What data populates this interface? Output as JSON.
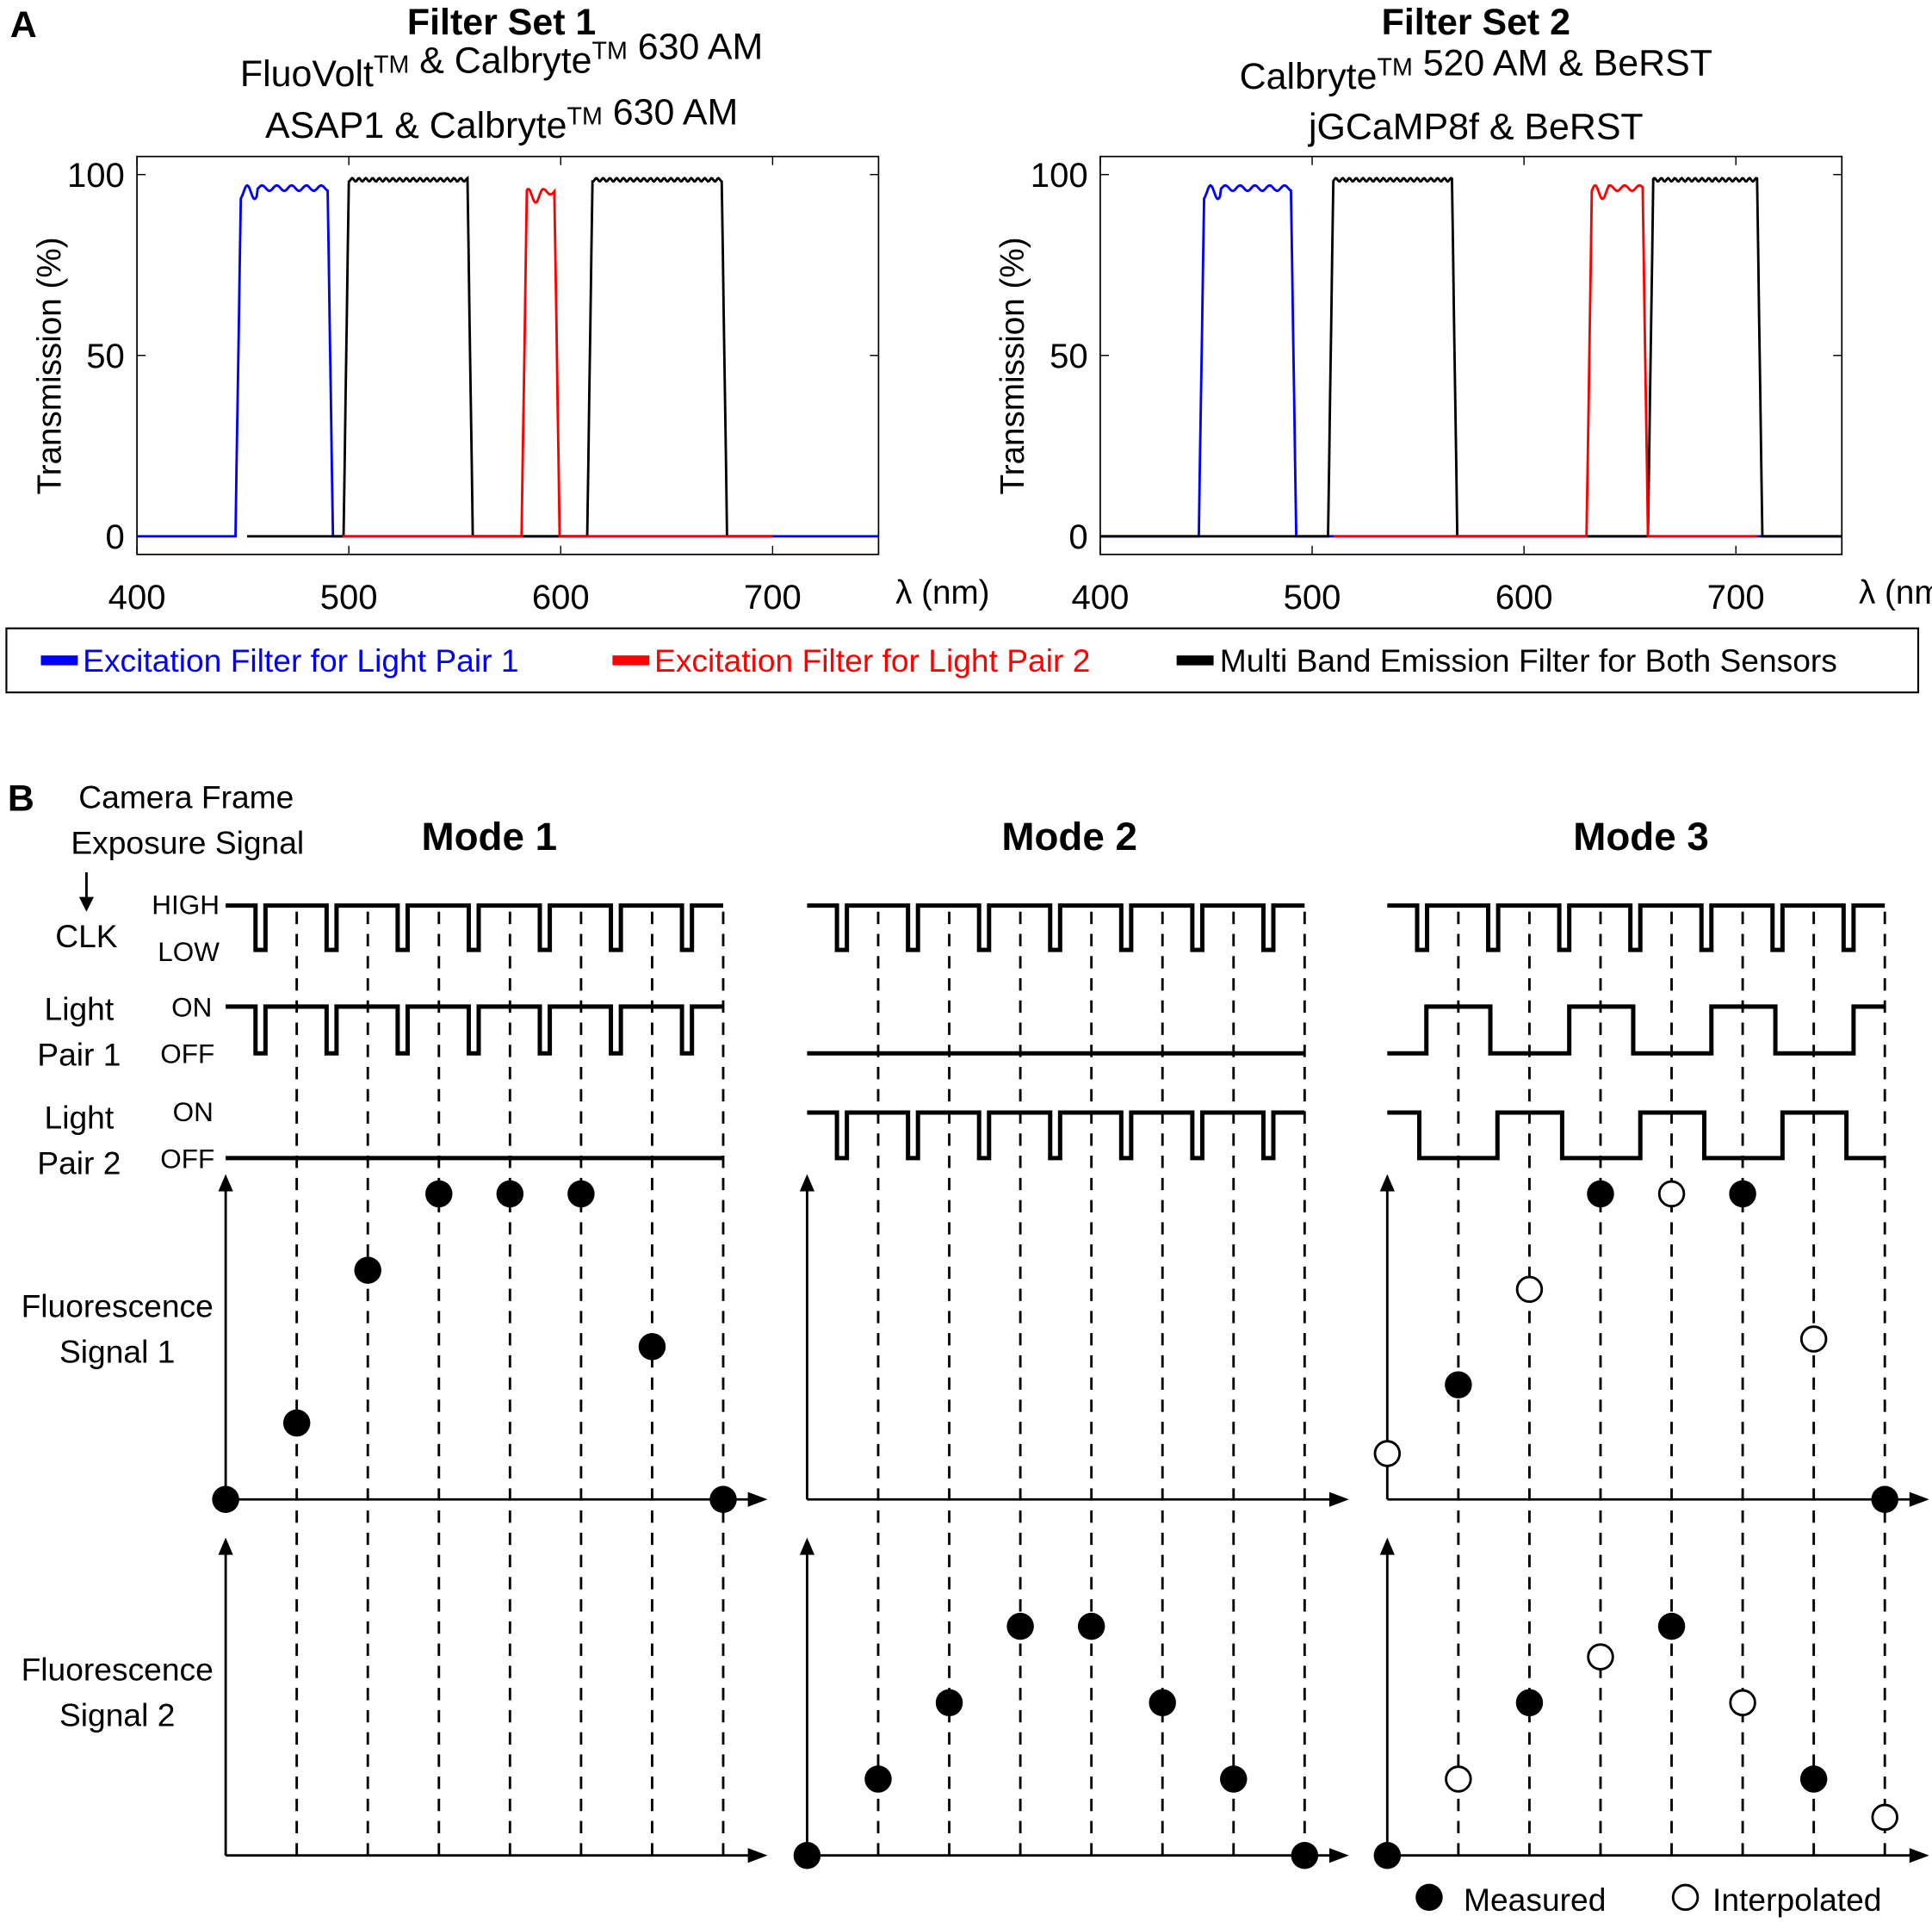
{
  "panel_a": {
    "label": "A",
    "legend": [
      {
        "label": "Excitation Filter for Light Pair 1",
        "color": "#0000ff"
      },
      {
        "label": "Excitation Filter for Light Pair 2",
        "color": "#ff0000"
      },
      {
        "label": "Multi Band Emission Filter for Both Sensors",
        "color": "#000000"
      }
    ]
  },
  "chart_data": [
    {
      "type": "line",
      "title": "Filter Set 1",
      "subtitle": [
        "FluoVolt™ & Calbryte™ 630 AM",
        "ASAP1 & Calbryte™ 630 AM"
      ],
      "xlabel": "λ (nm)",
      "ylabel": "Transmission (%)",
      "xlim": [
        400,
        750
      ],
      "ylim": [
        -5,
        105
      ],
      "xticks": [
        400,
        500,
        600,
        700
      ],
      "yticks": [
        0,
        50,
        100
      ],
      "grid": false,
      "series": [
        {
          "color": "#0000ff",
          "range": [
            400,
            750
          ],
          "bands": [
            {
              "start": 449,
              "end": 490,
              "peak": 97
            }
          ]
        },
        {
          "color": "#000000",
          "range": [
            452,
            700
          ],
          "bands": [
            {
              "start": 500,
              "end": 556,
              "peak": 99
            },
            {
              "start": 615,
              "end": 676,
              "peak": 99
            }
          ]
        },
        {
          "color": "#ff0000",
          "range": [
            497,
            700
          ],
          "bands": [
            {
              "start": 584,
              "end": 597,
              "peak": 96
            }
          ]
        }
      ]
    },
    {
      "type": "line",
      "title": "Filter Set 2",
      "subtitle": [
        "Calbryte™ 520 AM & BeRST",
        "jGCaMP8f & BeRST"
      ],
      "xlabel": "λ (nm)",
      "ylabel": "Transmission (%)",
      "xlim": [
        400,
        750
      ],
      "ylim": [
        -5,
        105
      ],
      "xticks": [
        400,
        500,
        600,
        700
      ],
      "yticks": [
        0,
        50,
        100
      ],
      "grid": false,
      "series": [
        {
          "color": "#0000ff",
          "range": [
            400,
            750
          ],
          "bands": [
            {
              "start": 449,
              "end": 490,
              "peak": 97
            }
          ]
        },
        {
          "color": "#000000",
          "range": [
            400,
            750
          ],
          "bands": [
            {
              "start": 510,
              "end": 566,
              "peak": 99
            },
            {
              "start": 661,
              "end": 710,
              "peak": 99
            }
          ]
        },
        {
          "color": "#ff0000",
          "range": [
            510,
            710
          ],
          "bands": [
            {
              "start": 632,
              "end": 656,
              "peak": 97
            }
          ]
        }
      ]
    }
  ],
  "panel_b": {
    "label": "B",
    "camera_label": [
      "Camera Frame",
      "Exposure Signal"
    ],
    "clk_label": "CLK",
    "high": "HIGH",
    "low": "LOW",
    "light1_label": [
      "Light",
      "Pair 1"
    ],
    "light2_label": [
      "Light",
      "Pair 2"
    ],
    "on": "ON",
    "off": "OFF",
    "signal1_label": [
      "Fluorescence",
      "Signal 1"
    ],
    "signal2_label": [
      "Fluorescence",
      "Signal 2"
    ],
    "legend": {
      "measured": "Measured",
      "interpolated": "Interpolated"
    },
    "frames": 7,
    "modes": [
      {
        "title": "Mode 1",
        "light_pair_1": {
          "pattern": "pulsed"
        },
        "light_pair_2": {
          "pattern": "off"
        },
        "signal_1": {
          "measured": [
            [
              0,
              0
            ],
            [
              1,
              1
            ],
            [
              2,
              3
            ],
            [
              3,
              4
            ],
            [
              4,
              4
            ],
            [
              5,
              4
            ],
            [
              6,
              2
            ],
            [
              7,
              0
            ]
          ],
          "interpolated": []
        },
        "signal_2": {
          "measured": [],
          "interpolated": []
        }
      },
      {
        "title": "Mode 2",
        "light_pair_1": {
          "pattern": "off"
        },
        "light_pair_2": {
          "pattern": "pulsed"
        },
        "signal_1": {
          "measured": [],
          "interpolated": []
        },
        "signal_2": {
          "measured": [
            [
              0,
              0
            ],
            [
              1,
              1
            ],
            [
              2,
              2
            ],
            [
              3,
              3
            ],
            [
              4,
              3
            ],
            [
              5,
              2
            ],
            [
              6,
              1
            ],
            [
              7,
              0
            ]
          ],
          "interpolated": []
        }
      },
      {
        "title": "Mode 3",
        "light_pair_1": {
          "pattern": "alternating",
          "on_frames": [
            1,
            3,
            5,
            7
          ]
        },
        "light_pair_2": {
          "pattern": "alternating",
          "on_frames": [
            0,
            2,
            4,
            6
          ]
        },
        "signal_1": {
          "measured": [
            [
              1,
              1.5
            ],
            [
              3,
              4
            ],
            [
              5,
              4
            ],
            [
              7,
              0
            ]
          ],
          "interpolated": [
            [
              0,
              0.6
            ],
            [
              2,
              2.75
            ],
            [
              4,
              4
            ],
            [
              6,
              2.1
            ]
          ]
        },
        "signal_2": {
          "measured": [
            [
              0,
              0
            ],
            [
              2,
              2
            ],
            [
              4,
              3
            ],
            [
              6,
              1
            ]
          ],
          "interpolated": [
            [
              1,
              1
            ],
            [
              3,
              2.6
            ],
            [
              5,
              2
            ],
            [
              7,
              0.5
            ]
          ]
        }
      }
    ]
  }
}
